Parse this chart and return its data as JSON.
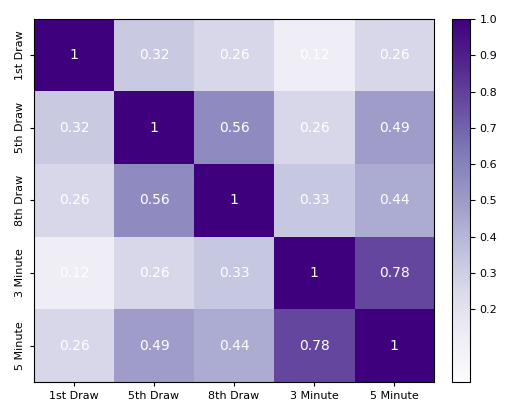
{
  "labels": [
    "1st Draw",
    "5th Draw",
    "8th Draw",
    "3 Minute",
    "5 Minute"
  ],
  "matrix": [
    [
      1.0,
      0.32,
      0.26,
      0.12,
      0.26
    ],
    [
      0.32,
      1.0,
      0.56,
      0.26,
      0.49
    ],
    [
      0.26,
      0.56,
      1.0,
      0.33,
      0.44
    ],
    [
      0.12,
      0.26,
      0.33,
      1.0,
      0.78
    ],
    [
      0.26,
      0.49,
      0.44,
      0.78,
      1.0
    ]
  ],
  "cmap": "Purples",
  "vmin": 0.0,
  "vmax": 1.0,
  "text_color": "white",
  "fontsize_annot": 10,
  "fontsize_tick": 8,
  "colorbar_ticks": [
    0.2,
    0.3,
    0.4,
    0.5,
    0.6,
    0.7,
    0.8,
    0.9,
    1.0
  ],
  "figsize": [
    5.12,
    4.16
  ],
  "dpi": 100
}
